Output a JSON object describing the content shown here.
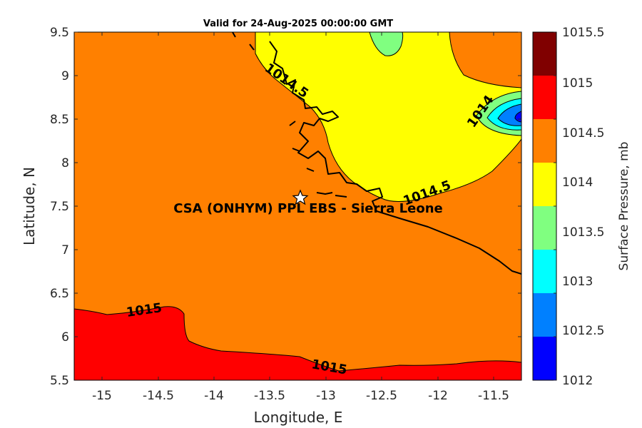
{
  "title": "Valid for 24-Aug-2025 00:00:00 GMT",
  "x_axis": {
    "label": "Longitude, E",
    "ticks": [
      "-15",
      "-14.5",
      "-14",
      "-13.5",
      "-13",
      "-12.5",
      "-12",
      "-11.5"
    ]
  },
  "y_axis": {
    "label": "Latitude, N",
    "ticks": [
      "9.5",
      "9",
      "8.5",
      "8",
      "7.5",
      "7",
      "6.5",
      "6",
      "5.5"
    ]
  },
  "colorbar": {
    "label": "Surface Pressure, mb",
    "ticks": [
      "1015.5",
      "1015",
      "1014.5",
      "1014",
      "1013.5",
      "1013",
      "1012.5",
      "1012"
    ],
    "colors": [
      "#800000",
      "#ff0000",
      "#ff8000",
      "#ffff00",
      "#80ff80",
      "#00ffff",
      "#0080ff",
      "#0000ff"
    ]
  },
  "contour_labels": {
    "a": "1014.5",
    "b": "1014",
    "c": "1014.5",
    "d": "1015",
    "e": "1015"
  },
  "site": {
    "label": "CSA (ONHYM) PPL EBS  - Sierra Leone",
    "marker": "star-icon"
  },
  "chart_data": {
    "type": "heatmap",
    "title": "Valid for 24-Aug-2025 00:00:00 GMT",
    "xlabel": "Longitude, E",
    "ylabel": "Latitude, N",
    "xlim": [
      -15.25,
      -11.25
    ],
    "ylim": [
      5.5,
      9.5
    ],
    "colorbar_label": "Surface Pressure, mb",
    "colorbar_range": [
      1012,
      1015.5
    ],
    "contour_levels": [
      1012,
      1012.5,
      1013,
      1013.5,
      1014,
      1014.5,
      1015,
      1015.5
    ],
    "site": {
      "name": "CSA (ONHYM) PPL EBS  - Sierra Leone",
      "lon": -13.25,
      "lat": 7.6
    }
  }
}
